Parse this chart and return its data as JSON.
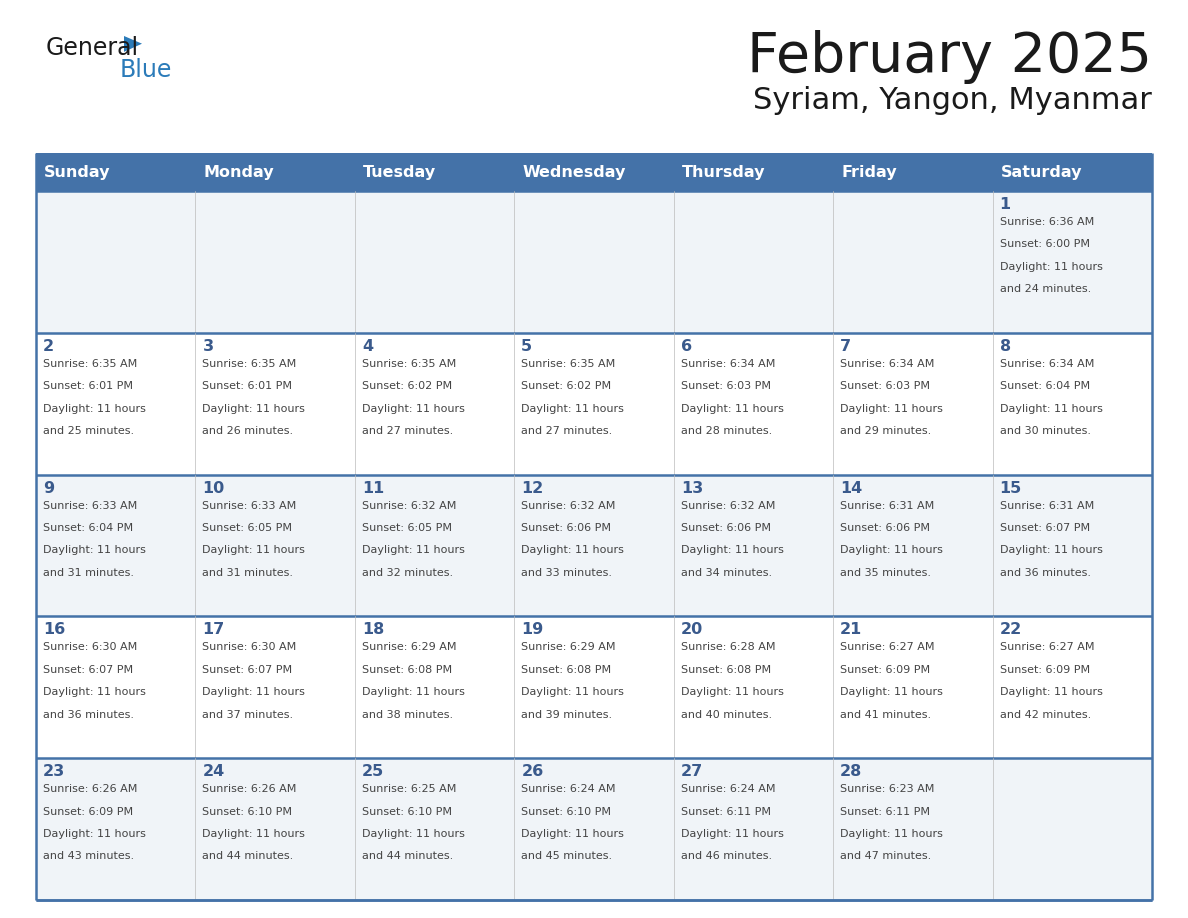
{
  "title": "February 2025",
  "subtitle": "Syriam, Yangon, Myanmar",
  "days_of_week": [
    "Sunday",
    "Monday",
    "Tuesday",
    "Wednesday",
    "Thursday",
    "Friday",
    "Saturday"
  ],
  "header_bg": "#4472A8",
  "header_text": "#FFFFFF",
  "row_bg_odd": "#FFFFFF",
  "row_bg_even": "#F0F4F8",
  "day_number_color": "#3A5A8C",
  "info_text_color": "#444444",
  "divider_color": "#4472A8",
  "cell_divider_color": "#BBBBBB",
  "calendar_data": [
    [
      {
        "day": null,
        "sunrise": null,
        "sunset": null,
        "daylight": null
      },
      {
        "day": null,
        "sunrise": null,
        "sunset": null,
        "daylight": null
      },
      {
        "day": null,
        "sunrise": null,
        "sunset": null,
        "daylight": null
      },
      {
        "day": null,
        "sunrise": null,
        "sunset": null,
        "daylight": null
      },
      {
        "day": null,
        "sunrise": null,
        "sunset": null,
        "daylight": null
      },
      {
        "day": null,
        "sunrise": null,
        "sunset": null,
        "daylight": null
      },
      {
        "day": 1,
        "sunrise": "6:36 AM",
        "sunset": "6:00 PM",
        "daylight": "11 hours and 24 minutes."
      }
    ],
    [
      {
        "day": 2,
        "sunrise": "6:35 AM",
        "sunset": "6:01 PM",
        "daylight": "11 hours and 25 minutes."
      },
      {
        "day": 3,
        "sunrise": "6:35 AM",
        "sunset": "6:01 PM",
        "daylight": "11 hours and 26 minutes."
      },
      {
        "day": 4,
        "sunrise": "6:35 AM",
        "sunset": "6:02 PM",
        "daylight": "11 hours and 27 minutes."
      },
      {
        "day": 5,
        "sunrise": "6:35 AM",
        "sunset": "6:02 PM",
        "daylight": "11 hours and 27 minutes."
      },
      {
        "day": 6,
        "sunrise": "6:34 AM",
        "sunset": "6:03 PM",
        "daylight": "11 hours and 28 minutes."
      },
      {
        "day": 7,
        "sunrise": "6:34 AM",
        "sunset": "6:03 PM",
        "daylight": "11 hours and 29 minutes."
      },
      {
        "day": 8,
        "sunrise": "6:34 AM",
        "sunset": "6:04 PM",
        "daylight": "11 hours and 30 minutes."
      }
    ],
    [
      {
        "day": 9,
        "sunrise": "6:33 AM",
        "sunset": "6:04 PM",
        "daylight": "11 hours and 31 minutes."
      },
      {
        "day": 10,
        "sunrise": "6:33 AM",
        "sunset": "6:05 PM",
        "daylight": "11 hours and 31 minutes."
      },
      {
        "day": 11,
        "sunrise": "6:32 AM",
        "sunset": "6:05 PM",
        "daylight": "11 hours and 32 minutes."
      },
      {
        "day": 12,
        "sunrise": "6:32 AM",
        "sunset": "6:06 PM",
        "daylight": "11 hours and 33 minutes."
      },
      {
        "day": 13,
        "sunrise": "6:32 AM",
        "sunset": "6:06 PM",
        "daylight": "11 hours and 34 minutes."
      },
      {
        "day": 14,
        "sunrise": "6:31 AM",
        "sunset": "6:06 PM",
        "daylight": "11 hours and 35 minutes."
      },
      {
        "day": 15,
        "sunrise": "6:31 AM",
        "sunset": "6:07 PM",
        "daylight": "11 hours and 36 minutes."
      }
    ],
    [
      {
        "day": 16,
        "sunrise": "6:30 AM",
        "sunset": "6:07 PM",
        "daylight": "11 hours and 36 minutes."
      },
      {
        "day": 17,
        "sunrise": "6:30 AM",
        "sunset": "6:07 PM",
        "daylight": "11 hours and 37 minutes."
      },
      {
        "day": 18,
        "sunrise": "6:29 AM",
        "sunset": "6:08 PM",
        "daylight": "11 hours and 38 minutes."
      },
      {
        "day": 19,
        "sunrise": "6:29 AM",
        "sunset": "6:08 PM",
        "daylight": "11 hours and 39 minutes."
      },
      {
        "day": 20,
        "sunrise": "6:28 AM",
        "sunset": "6:08 PM",
        "daylight": "11 hours and 40 minutes."
      },
      {
        "day": 21,
        "sunrise": "6:27 AM",
        "sunset": "6:09 PM",
        "daylight": "11 hours and 41 minutes."
      },
      {
        "day": 22,
        "sunrise": "6:27 AM",
        "sunset": "6:09 PM",
        "daylight": "11 hours and 42 minutes."
      }
    ],
    [
      {
        "day": 23,
        "sunrise": "6:26 AM",
        "sunset": "6:09 PM",
        "daylight": "11 hours and 43 minutes."
      },
      {
        "day": 24,
        "sunrise": "6:26 AM",
        "sunset": "6:10 PM",
        "daylight": "11 hours and 44 minutes."
      },
      {
        "day": 25,
        "sunrise": "6:25 AM",
        "sunset": "6:10 PM",
        "daylight": "11 hours and 44 minutes."
      },
      {
        "day": 26,
        "sunrise": "6:24 AM",
        "sunset": "6:10 PM",
        "daylight": "11 hours and 45 minutes."
      },
      {
        "day": 27,
        "sunrise": "6:24 AM",
        "sunset": "6:11 PM",
        "daylight": "11 hours and 46 minutes."
      },
      {
        "day": 28,
        "sunrise": "6:23 AM",
        "sunset": "6:11 PM",
        "daylight": "11 hours and 47 minutes."
      },
      {
        "day": null,
        "sunrise": null,
        "sunset": null,
        "daylight": null
      }
    ]
  ]
}
